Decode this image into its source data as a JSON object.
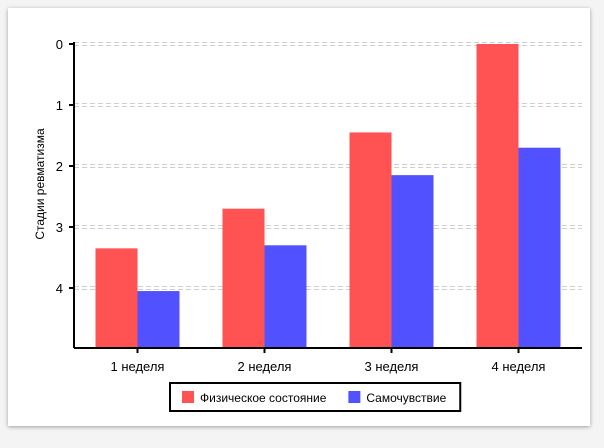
{
  "chart_data": {
    "type": "bar",
    "orientation": "vertical",
    "categories": [
      "1 неделя",
      "2 неделя",
      "3 неделя",
      "4 неделя"
    ],
    "series": [
      {
        "name": "Физическое состояние",
        "color": "#ff5252",
        "values": [
          3.35,
          2.7,
          1.45,
          0.0
        ]
      },
      {
        "name": "Самочувствие",
        "color": "#5151ff",
        "values": [
          4.05,
          3.3,
          2.15,
          1.7
        ]
      }
    ],
    "ylabel": "Стадии ревматизма",
    "xlabel": "",
    "y_ticks": [
      "0",
      "1",
      "2",
      "3",
      "4"
    ],
    "ylim": [
      0,
      5
    ],
    "y_inverted": true,
    "grid": "horizontal-dashed",
    "legend_position": "bottom"
  }
}
